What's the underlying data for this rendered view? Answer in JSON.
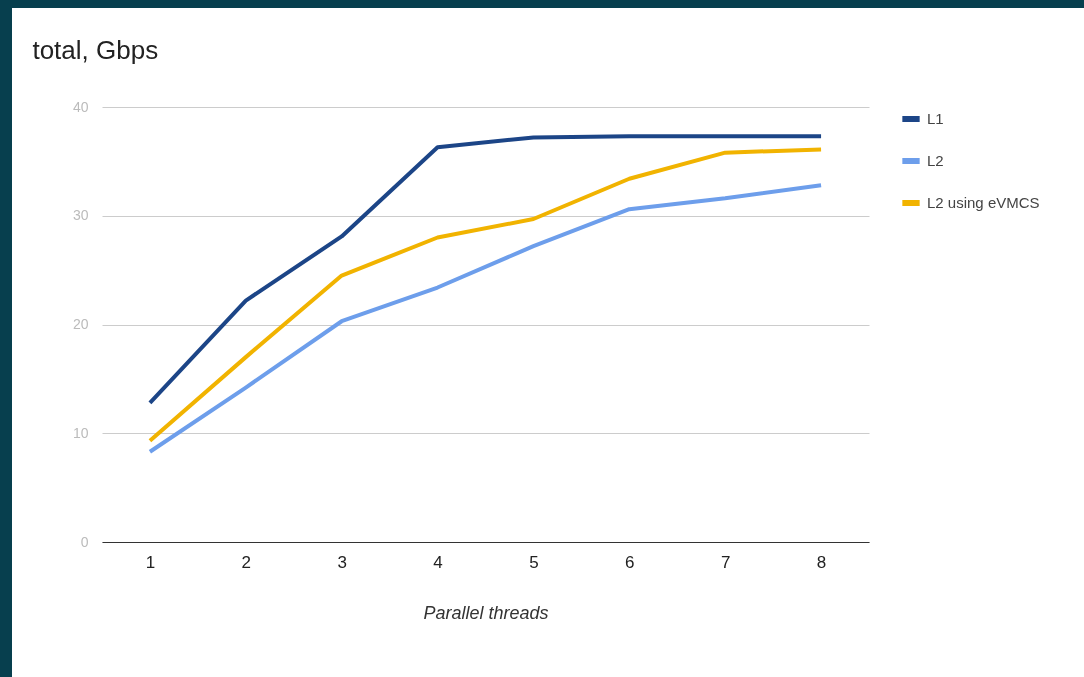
{
  "chart_data": {
    "type": "line",
    "title": "total, Gbps",
    "xlabel": "Parallel threads",
    "categories": [
      "1",
      "2",
      "3",
      "4",
      "5",
      "6",
      "7",
      "8"
    ],
    "series": [
      {
        "name": "L1",
        "color": "#1c4587",
        "values": [
          12.8,
          22.2,
          28.1,
          36.3,
          37.2,
          37.3,
          37.3,
          37.3
        ]
      },
      {
        "name": "L2",
        "color": "#6d9eeb",
        "values": [
          8.3,
          14.2,
          20.3,
          23.4,
          27.2,
          30.6,
          31.6,
          32.8
        ]
      },
      {
        "name": "L2 using eVMCS",
        "color": "#f1b300",
        "values": [
          9.3,
          17.0,
          24.5,
          28.0,
          29.7,
          33.4,
          35.8,
          36.1
        ]
      }
    ],
    "ylim": [
      0,
      40
    ],
    "yticks": [
      0,
      10,
      20,
      30,
      40
    ],
    "grid": "y",
    "legend": "top right",
    "marker": "none",
    "line_style": "solid"
  }
}
